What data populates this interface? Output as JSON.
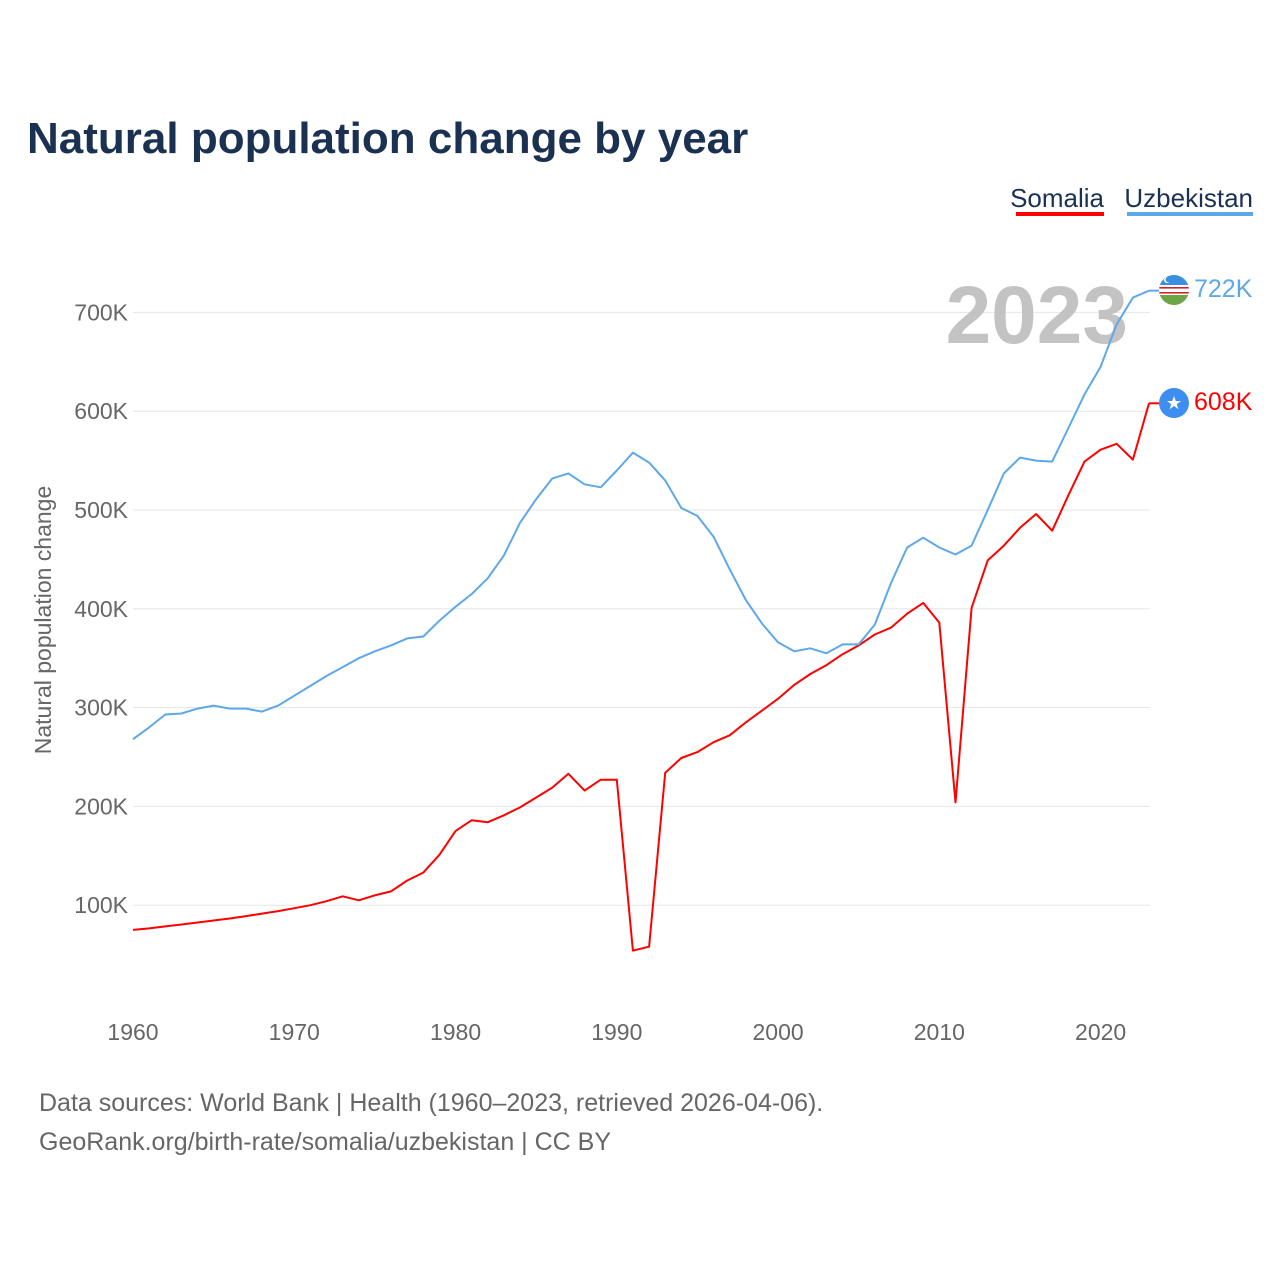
{
  "chart_data": {
    "type": "line",
    "title": "Natural population change by year",
    "ylabel": "Natural population change",
    "xlabel": "",
    "xlim": [
      1960,
      2023
    ],
    "ylim": [
      0,
      750000
    ],
    "x_ticks": [
      1960,
      1970,
      1980,
      1990,
      2000,
      2010,
      2020
    ],
    "x_tick_labels": [
      "1960",
      "1970",
      "1980",
      "1990",
      "2000",
      "2010",
      "2020"
    ],
    "y_ticks": [
      100000,
      200000,
      300000,
      400000,
      500000,
      600000,
      700000
    ],
    "y_tick_labels": [
      "100K",
      "200K",
      "300K",
      "400K",
      "500K",
      "600K",
      "700K"
    ],
    "grid": true,
    "legend_position": "top-right",
    "current_year_label": "2023",
    "x": [
      1960,
      1961,
      1962,
      1963,
      1964,
      1965,
      1966,
      1967,
      1968,
      1969,
      1970,
      1971,
      1972,
      1973,
      1974,
      1975,
      1976,
      1977,
      1978,
      1979,
      1980,
      1981,
      1982,
      1983,
      1984,
      1985,
      1986,
      1987,
      1988,
      1989,
      1990,
      1991,
      1992,
      1993,
      1994,
      1995,
      1996,
      1997,
      1998,
      1999,
      2000,
      2001,
      2002,
      2003,
      2004,
      2005,
      2006,
      2007,
      2008,
      2009,
      2010,
      2011,
      2012,
      2013,
      2014,
      2015,
      2016,
      2017,
      2018,
      2019,
      2020,
      2021,
      2022,
      2023
    ],
    "series": [
      {
        "name": "Somalia",
        "color": "#ff0000",
        "end_label": "608K",
        "flag": "somalia-flag",
        "values": [
          75000,
          76500,
          78500,
          80500,
          82500,
          84500,
          86500,
          89000,
          91500,
          94000,
          97000,
          100000,
          104000,
          109000,
          105000,
          110000,
          114000,
          125000,
          133000,
          151000,
          175000,
          186000,
          184000,
          191000,
          199000,
          209000,
          219000,
          233000,
          216000,
          227000,
          227000,
          54000,
          58000,
          234000,
          249000,
          255000,
          265000,
          272000,
          285000,
          297000,
          309000,
          323000,
          334000,
          343000,
          354000,
          363000,
          374000,
          381000,
          395000,
          406000,
          386000,
          204000,
          401000,
          449000,
          464000,
          482000,
          496000,
          479000,
          515000,
          549000,
          561000,
          567000,
          551000,
          608000
        ]
      },
      {
        "name": "Uzbekistan",
        "color": "#5da8ea",
        "end_label": "722K",
        "flag": "uzbekistan-flag",
        "values": [
          268000,
          280000,
          293000,
          294000,
          299000,
          302000,
          299000,
          299000,
          296000,
          302000,
          312000,
          322000,
          332000,
          341000,
          350000,
          357000,
          363000,
          370000,
          372000,
          388000,
          402000,
          415000,
          431000,
          454000,
          487000,
          511000,
          532000,
          537000,
          526000,
          523000,
          540000,
          558000,
          548000,
          530000,
          502000,
          494000,
          473000,
          440000,
          409000,
          385000,
          366000,
          357000,
          360000,
          355000,
          364000,
          364000,
          384000,
          426000,
          462000,
          472000,
          462000,
          455000,
          464000,
          500000,
          537000,
          553000,
          550000,
          549000,
          583000,
          617000,
          645000,
          688000,
          715000,
          722000
        ]
      }
    ]
  },
  "footer": {
    "line1": "Data sources: World Bank | Health (1960–2023, retrieved 2026-04-06).",
    "line2": "GeoRank.org/birth-rate/somalia/uzbekistan | CC BY"
  }
}
